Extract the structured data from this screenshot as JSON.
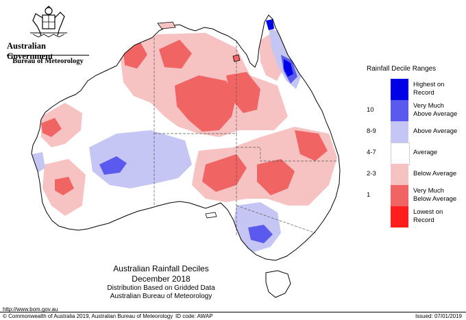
{
  "header": {
    "government": "Australian Government",
    "bureau": "Bureau of Meteorology"
  },
  "map": {
    "title": "Australian Rainfall Deciles",
    "period": "December 2018",
    "note": "Distribution Based on Gridded Data",
    "source": "Australian Bureau of Meteorology"
  },
  "legend": {
    "title": "Rainfall Decile Ranges",
    "ranges": [
      {
        "code": "",
        "label_line1": "Highest on",
        "label_line2": "Record",
        "color": "#0000e6"
      },
      {
        "code": "10",
        "label_line1": "Very Much",
        "label_line2": "Above Average",
        "color": "#5a5aee"
      },
      {
        "code": "8-9",
        "label_line1": "Above Average",
        "label_line2": "",
        "color": "#c6c6f5"
      },
      {
        "code": "4-7",
        "label_line1": "Average",
        "label_line2": "",
        "color": "#ffffff"
      },
      {
        "code": "2-3",
        "label_line1": "Below Average",
        "label_line2": "",
        "color": "#f7c2c2"
      },
      {
        "code": "1",
        "label_line1": "Very Much",
        "label_line2": "Below Average",
        "color": "#f06464"
      },
      {
        "code": "",
        "label_line1": "Lowest on",
        "label_line2": "Record",
        "color": "#ff1e1e"
      }
    ]
  },
  "footer": {
    "url": "http://www.bom.gov.au",
    "copyright": "© Commonwealth of Australia 2019, Australian Bureau of Meteorology",
    "id_code": "ID code: AWAP",
    "issued": "Issued: 07/01/2019"
  },
  "colors": {
    "highest": "#0000e6",
    "very_much_above": "#5a5aee",
    "above": "#c6c6f5",
    "average": "#ffffff",
    "below": "#f7c2c2",
    "very_much_below": "#f06464",
    "lowest": "#ff1e1e"
  }
}
